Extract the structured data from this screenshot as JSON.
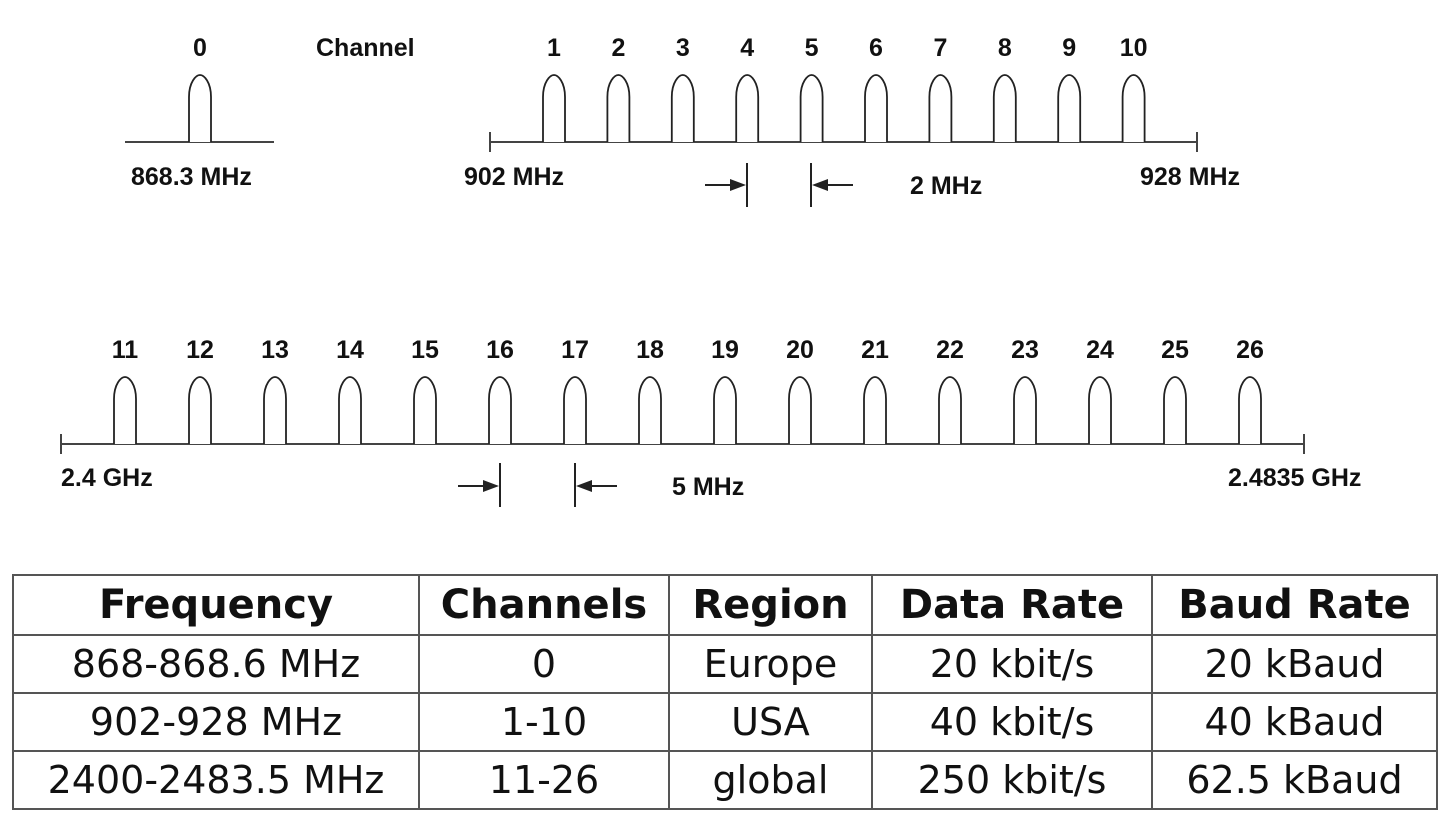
{
  "diagram": {
    "channel_label": "Channel",
    "band_868": {
      "channels": [
        "0"
      ],
      "freq_label": "868.3 MHz"
    },
    "band_915": {
      "channels": [
        "1",
        "2",
        "3",
        "4",
        "5",
        "6",
        "7",
        "8",
        "9",
        "10"
      ],
      "start_label": "902 MHz",
      "end_label": "928 MHz",
      "spacing_label": "2 MHz"
    },
    "band_2450": {
      "channels": [
        "11",
        "12",
        "13",
        "14",
        "15",
        "16",
        "17",
        "18",
        "19",
        "20",
        "21",
        "22",
        "23",
        "24",
        "25",
        "26"
      ],
      "start_label": "2.4 GHz",
      "end_label": "2.4835 GHz",
      "spacing_label": "5 MHz"
    }
  },
  "table": {
    "headers": [
      "Frequency",
      "Channels",
      "Region",
      "Data Rate",
      "Baud Rate"
    ],
    "rows": [
      [
        "868-868.6 MHz",
        "0",
        "Europe",
        "20 kbit/s",
        "20 kBaud"
      ],
      [
        "902-928 MHz",
        "1-10",
        "USA",
        "40 kbit/s",
        "40 kBaud"
      ],
      [
        "2400-2483.5 MHz",
        "11-26",
        "global",
        "250 kbit/s",
        "62.5 kBaud"
      ]
    ]
  }
}
